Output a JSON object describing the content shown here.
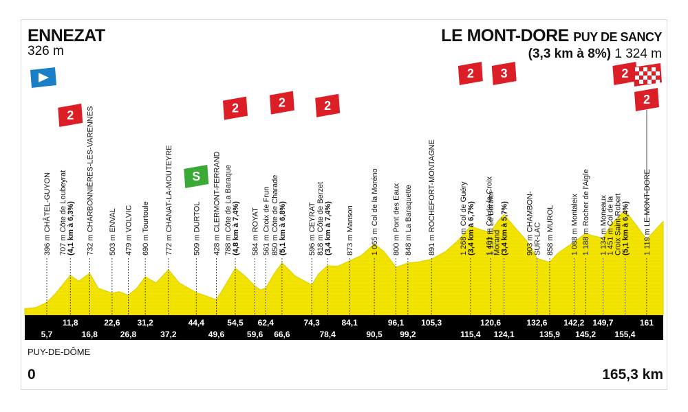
{
  "stage": {
    "start_town": "ENNEZAT",
    "start_alt": "326 m",
    "finish_town": "LE MONT-DORE",
    "finish_sub": "PUY DE SANCY",
    "finish_climb": "(3,3 km à 8%)",
    "finish_alt": "1 324 m",
    "department": "PUY-DE-DÔME",
    "km_start": "0",
    "km_total": "165,3 km"
  },
  "colors": {
    "profile_fill": "#f2e400",
    "profile_stroke": "#ddd000",
    "band": "#000000",
    "kom_red": "#dc1f26",
    "sprint_green": "#3aa935",
    "start_blue": "#1a7fc6"
  },
  "chart_data": {
    "type": "area",
    "title": "",
    "xlabel": "",
    "ylabel": "",
    "xlim": [
      0,
      165.3
    ],
    "ylim": [
      250,
      1500
    ],
    "profile": [
      [
        0,
        326
      ],
      [
        3,
        340
      ],
      [
        5.7,
        396
      ],
      [
        8,
        500
      ],
      [
        11.8,
        707
      ],
      [
        14,
        640
      ],
      [
        16.8,
        732
      ],
      [
        19,
        560
      ],
      [
        22.6,
        503
      ],
      [
        24.5,
        520
      ],
      [
        26.8,
        479
      ],
      [
        29,
        560
      ],
      [
        31.2,
        690
      ],
      [
        34,
        620
      ],
      [
        37.2,
        772
      ],
      [
        40,
        620
      ],
      [
        44.4,
        509
      ],
      [
        47,
        470
      ],
      [
        49.6,
        428
      ],
      [
        52,
        600
      ],
      [
        54.5,
        788
      ],
      [
        57,
        700
      ],
      [
        59.6,
        584
      ],
      [
        61,
        540
      ],
      [
        62.4,
        561
      ],
      [
        64.5,
        720
      ],
      [
        66.6,
        850
      ],
      [
        70,
        700
      ],
      [
        74.3,
        596
      ],
      [
        76,
        720
      ],
      [
        78.4,
        818
      ],
      [
        81,
        810
      ],
      [
        84.1,
        873
      ],
      [
        87,
        930
      ],
      [
        90.5,
        1065
      ],
      [
        93,
        980
      ],
      [
        96.1,
        800
      ],
      [
        97.5,
        820
      ],
      [
        99.2,
        848
      ],
      [
        102,
        860
      ],
      [
        105.3,
        891
      ],
      [
        109,
        980
      ],
      [
        112,
        1100
      ],
      [
        115.4,
        1268
      ],
      [
        118,
        1230
      ],
      [
        120.6,
        1197
      ],
      [
        122.5,
        1330
      ],
      [
        124.1,
        1401
      ],
      [
        127,
        1250
      ],
      [
        130,
        1100
      ],
      [
        132.6,
        903
      ],
      [
        134,
        880
      ],
      [
        135.9,
        858
      ],
      [
        138,
        960
      ],
      [
        142.2,
        1088
      ],
      [
        143.5,
        1130
      ],
      [
        145.2,
        1188
      ],
      [
        147,
        1160
      ],
      [
        149.7,
        1134
      ],
      [
        152,
        1300
      ],
      [
        155.4,
        1451
      ],
      [
        158,
        1300
      ],
      [
        161,
        1119
      ],
      [
        163.5,
        1240
      ],
      [
        165.3,
        1324
      ]
    ],
    "waypoints": [
      {
        "km": 5.7,
        "km_label": "5,7",
        "label": "396 m CHÂTEL-GUYON"
      },
      {
        "km": 11.8,
        "km_label": "11,8",
        "label": "707 m Côte de Loubeyrat",
        "detail": "(4,1 km à 6,3%)",
        "kom": "2"
      },
      {
        "km": 16.8,
        "km_label": "16,8",
        "label": "732 m CHARBONNIÈRES-LES-VARENNES"
      },
      {
        "km": 22.6,
        "km_label": "22,6",
        "label": "503 m ENVAL"
      },
      {
        "km": 26.8,
        "km_label": "26,8",
        "label": "479 m VOLVIC"
      },
      {
        "km": 31.2,
        "km_label": "31,2",
        "label": "690 m Tourtoule"
      },
      {
        "km": 37.2,
        "km_label": "37,2",
        "label": "772 m CHANAT-LA-MOUTEYRE"
      },
      {
        "km": 44.4,
        "km_label": "44,4",
        "label": "509 m DURTOL",
        "sprint": "S"
      },
      {
        "km": 49.6,
        "km_label": "49,6",
        "label": "428 m CLERMONT-FERRAND"
      },
      {
        "km": 54.5,
        "km_label": "54,5",
        "label": "788 m Côte de La Baraque",
        "detail": "(4,8 km à 7,4%)",
        "kom": "2"
      },
      {
        "km": 59.6,
        "km_label": "59,6",
        "label": "584 m ROYAT"
      },
      {
        "km": 62.4,
        "km_label": "62,4",
        "label": "561 m Croix de Frun"
      },
      {
        "km": 66.6,
        "km_label": "66,6",
        "label": "850 m Côte de Charade",
        "detail": "(5,1 km à 6,8%)",
        "kom": "2"
      },
      {
        "km": 74.3,
        "km_label": "74,3",
        "label": "596 m CEYRAT"
      },
      {
        "km": 78.4,
        "km_label": "78,4",
        "label": "818 m Côte de Berzet",
        "detail": "(3,4 km à 7,4%)",
        "kom": "2"
      },
      {
        "km": 84.1,
        "km_label": "84,1",
        "label": "873 m Manson"
      },
      {
        "km": 90.5,
        "km_label": "90,5",
        "label": "1 065 m Col de la Moréno"
      },
      {
        "km": 96.1,
        "km_label": "96,1",
        "label": "800 m Pont des Eaux"
      },
      {
        "km": 99.2,
        "km_label": "99,2",
        "label": "848 m La Baraquette"
      },
      {
        "km": 105.3,
        "km_label": "105,3",
        "label": "891 m ROCHEFORT-MONTAGNE"
      },
      {
        "km": 115.4,
        "km_label": "115,4",
        "label": "1 268 m Col de Guéry",
        "detail": "(3,4 km à 6,7%)",
        "kom": "2"
      },
      {
        "km": 120.6,
        "km_label": "120,6",
        "label": "1 197 m Le Barbier"
      },
      {
        "km": 124.1,
        "km_label": "124,1",
        "label": "1 401 m Col de la Croix",
        "label2": "Morand",
        "detail": "(3,4 km à 5,7%)",
        "kom": "3"
      },
      {
        "km": 132.6,
        "km_label": "132,6",
        "label": "903 m CHAMBON-",
        "label2": "SUR-LAC"
      },
      {
        "km": 135.9,
        "km_label": "135,9",
        "label": "858 m MUROL"
      },
      {
        "km": 142.2,
        "km_label": "142,2",
        "label": "1 088 m Montaleix"
      },
      {
        "km": 145.2,
        "km_label": "145,2",
        "label": "1 188 m Rocher de l'Aigle"
      },
      {
        "km": 149.7,
        "km_label": "149,7",
        "label": "1 134 m Moneaux"
      },
      {
        "km": 155.4,
        "km_label": "155,4",
        "label": "1 451 m Col de la",
        "label2": "Croix Saint-Robert",
        "detail": "(5,1 km à 6,4%)",
        "kom": "2"
      },
      {
        "km": 161,
        "km_label": "161",
        "label": "1 119 m LE MONT-DORE"
      }
    ],
    "finish_kom": "2"
  }
}
